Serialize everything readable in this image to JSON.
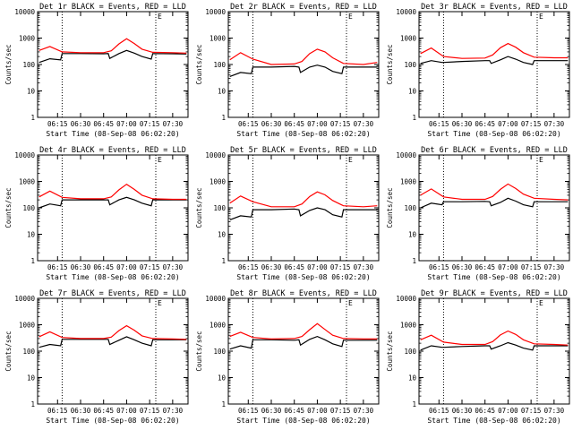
{
  "figure": {
    "xlabel": "Start Time (08-Sep-08 06:02:20)",
    "ylabel": "Counts/sec",
    "x_ticks": [
      "06:15",
      "06:30",
      "06:45",
      "07:00",
      "07:15",
      "07:30"
    ],
    "y_ticks": [
      "1",
      "10",
      "100",
      "1000",
      "10000"
    ],
    "corner_mark": "E",
    "colors": {
      "events": "#000000",
      "lld": "#ff0000",
      "axes": "#000000"
    }
  },
  "chart_data": [
    {
      "type": "line",
      "title": "Det 1r BLACK = Events, RED = LLD",
      "xlabel": "Start Time (08-Sep-08 06:02:20)",
      "ylabel": "Counts/sec",
      "ylim": [
        1,
        10000
      ],
      "yscale": "log",
      "xlim": [
        "06:02",
        "07:40"
      ],
      "vlines": [
        "06:18",
        "07:19"
      ],
      "series": [
        {
          "name": "Events",
          "color": "#000000",
          "x": [
            "06:03",
            "06:10",
            "06:17",
            "06:18",
            "06:30",
            "06:45",
            "06:48",
            "06:49",
            "06:55",
            "07:00",
            "07:05",
            "07:10",
            "07:16",
            "07:17",
            "07:30",
            "07:39"
          ],
          "y": [
            120,
            165,
            150,
            260,
            260,
            255,
            260,
            170,
            260,
            340,
            270,
            200,
            160,
            260,
            255,
            250
          ]
        },
        {
          "name": "LLD",
          "color": "#ff0000",
          "x": [
            "06:03",
            "06:10",
            "06:18",
            "06:30",
            "06:45",
            "06:50",
            "06:55",
            "07:00",
            "07:05",
            "07:10",
            "07:17",
            "07:30",
            "07:39"
          ],
          "y": [
            340,
            480,
            300,
            280,
            280,
            330,
            600,
            950,
            620,
            380,
            290,
            280,
            270
          ]
        }
      ]
    },
    {
      "type": "line",
      "title": "Det 2r BLACK = Events, RED = LLD",
      "xlabel": "Start Time (08-Sep-08 06:02:20)",
      "ylabel": "Counts/sec",
      "ylim": [
        1,
        10000
      ],
      "yscale": "log",
      "xlim": [
        "06:02",
        "07:40"
      ],
      "vlines": [
        "06:18",
        "07:19"
      ],
      "series": [
        {
          "name": "Events",
          "color": "#000000",
          "x": [
            "06:03",
            "06:10",
            "06:17",
            "06:18",
            "06:30",
            "06:45",
            "06:48",
            "06:49",
            "06:55",
            "07:00",
            "07:05",
            "07:10",
            "07:16",
            "07:17",
            "07:30",
            "07:39"
          ],
          "y": [
            35,
            50,
            45,
            80,
            80,
            85,
            80,
            50,
            80,
            95,
            80,
            55,
            45,
            80,
            80,
            80
          ]
        },
        {
          "name": "LLD",
          "color": "#ff0000",
          "x": [
            "06:03",
            "06:10",
            "06:18",
            "06:30",
            "06:45",
            "06:50",
            "06:55",
            "07:00",
            "07:05",
            "07:10",
            "07:17",
            "07:30",
            "07:39"
          ],
          "y": [
            150,
            280,
            160,
            100,
            105,
            130,
            260,
            380,
            300,
            180,
            110,
            100,
            120
          ]
        }
      ]
    },
    {
      "type": "line",
      "title": "Det 3r BLACK = Events, RED = LLD",
      "xlabel": "Start Time (08-Sep-08 06:02:20)",
      "ylabel": "Counts/sec",
      "ylim": [
        1,
        10000
      ],
      "yscale": "log",
      "xlim": [
        "06:02",
        "07:40"
      ],
      "vlines": [
        "06:18",
        "07:19"
      ],
      "series": [
        {
          "name": "Events",
          "color": "#000000",
          "x": [
            "06:03",
            "06:10",
            "06:17",
            "06:18",
            "06:30",
            "06:45",
            "06:48",
            "06:49",
            "06:55",
            "07:00",
            "07:05",
            "07:10",
            "07:16",
            "07:17",
            "07:30",
            "07:39"
          ],
          "y": [
            110,
            140,
            120,
            120,
            130,
            140,
            140,
            110,
            150,
            200,
            160,
            120,
            100,
            140,
            140,
            140
          ]
        },
        {
          "name": "LLD",
          "color": "#ff0000",
          "x": [
            "06:03",
            "06:10",
            "06:18",
            "06:30",
            "06:45",
            "06:50",
            "06:55",
            "07:00",
            "07:05",
            "07:10",
            "07:17",
            "07:30",
            "07:39"
          ],
          "y": [
            260,
            420,
            200,
            170,
            175,
            230,
            430,
            620,
            450,
            280,
            190,
            180,
            180
          ]
        }
      ]
    },
    {
      "type": "line",
      "title": "Det 4r BLACK = Events, RED = LLD",
      "xlabel": "Start Time (08-Sep-08 06:02:20)",
      "ylabel": "Counts/sec",
      "ylim": [
        1,
        10000
      ],
      "yscale": "log",
      "xlim": [
        "06:02",
        "07:40"
      ],
      "vlines": [
        "06:18",
        "07:19"
      ],
      "series": [
        {
          "name": "Events",
          "color": "#000000",
          "x": [
            "06:03",
            "06:10",
            "06:17",
            "06:18",
            "06:30",
            "06:45",
            "06:48",
            "06:49",
            "06:55",
            "07:00",
            "07:05",
            "07:10",
            "07:16",
            "07:17",
            "07:30",
            "07:39"
          ],
          "y": [
            100,
            140,
            120,
            200,
            200,
            200,
            200,
            130,
            200,
            250,
            200,
            150,
            120,
            200,
            200,
            200
          ]
        },
        {
          "name": "LLD",
          "color": "#ff0000",
          "x": [
            "06:03",
            "06:10",
            "06:18",
            "06:30",
            "06:45",
            "06:50",
            "06:55",
            "07:00",
            "07:05",
            "07:10",
            "07:17",
            "07:30",
            "07:39"
          ],
          "y": [
            260,
            430,
            250,
            220,
            220,
            260,
            480,
            780,
            500,
            300,
            220,
            210,
            210
          ]
        }
      ]
    },
    {
      "type": "line",
      "title": "Det 5r BLACK = Events, RED = LLD",
      "xlabel": "Start Time (08-Sep-08 06:02:20)",
      "ylabel": "Counts/sec",
      "ylim": [
        1,
        10000
      ],
      "yscale": "log",
      "xlim": [
        "06:02",
        "07:40"
      ],
      "vlines": [
        "06:18",
        "07:19"
      ],
      "series": [
        {
          "name": "Events",
          "color": "#000000",
          "x": [
            "06:03",
            "06:10",
            "06:17",
            "06:18",
            "06:30",
            "06:45",
            "06:48",
            "06:49",
            "06:55",
            "07:00",
            "07:05",
            "07:10",
            "07:16",
            "07:17",
            "07:30",
            "07:39"
          ],
          "y": [
            35,
            50,
            45,
            85,
            85,
            90,
            85,
            50,
            80,
            100,
            85,
            55,
            45,
            85,
            85,
            85
          ]
        },
        {
          "name": "LLD",
          "color": "#ff0000",
          "x": [
            "06:03",
            "06:10",
            "06:18",
            "06:30",
            "06:45",
            "06:50",
            "06:55",
            "07:00",
            "07:05",
            "07:10",
            "07:17",
            "07:30",
            "07:39"
          ],
          "y": [
            150,
            280,
            170,
            110,
            110,
            140,
            270,
            400,
            310,
            190,
            120,
            110,
            120
          ]
        }
      ]
    },
    {
      "type": "line",
      "title": "Det 6r BLACK = Events, RED = LLD",
      "xlabel": "Start Time (08-Sep-08 06:02:20)",
      "ylabel": "Counts/sec",
      "ylim": [
        1,
        10000
      ],
      "yscale": "log",
      "xlim": [
        "06:02",
        "07:40"
      ],
      "vlines": [
        "06:18",
        "07:19"
      ],
      "series": [
        {
          "name": "Events",
          "color": "#000000",
          "x": [
            "06:03",
            "06:10",
            "06:17",
            "06:18",
            "06:30",
            "06:45",
            "06:48",
            "06:49",
            "06:55",
            "07:00",
            "07:05",
            "07:10",
            "07:16",
            "07:17",
            "07:30",
            "07:39"
          ],
          "y": [
            100,
            150,
            130,
            170,
            170,
            175,
            170,
            120,
            160,
            230,
            180,
            130,
            110,
            170,
            170,
            170
          ]
        },
        {
          "name": "LLD",
          "color": "#ff0000",
          "x": [
            "06:03",
            "06:10",
            "06:18",
            "06:30",
            "06:45",
            "06:50",
            "06:55",
            "07:00",
            "07:05",
            "07:10",
            "07:17",
            "07:30",
            "07:39"
          ],
          "y": [
            300,
            520,
            260,
            210,
            210,
            270,
            500,
            800,
            540,
            330,
            230,
            210,
            200
          ]
        }
      ]
    },
    {
      "type": "line",
      "title": "Det 7r BLACK = Events, RED = LLD",
      "xlabel": "Start Time (08-Sep-08 06:02:20)",
      "ylabel": "Counts/sec",
      "ylim": [
        1,
        10000
      ],
      "yscale": "log",
      "xlim": [
        "06:02",
        "07:40"
      ],
      "vlines": [
        "06:18",
        "07:19"
      ],
      "series": [
        {
          "name": "Events",
          "color": "#000000",
          "x": [
            "06:03",
            "06:10",
            "06:17",
            "06:18",
            "06:30",
            "06:45",
            "06:48",
            "06:49",
            "06:55",
            "07:00",
            "07:05",
            "07:10",
            "07:16",
            "07:17",
            "07:30",
            "07:39"
          ],
          "y": [
            140,
            180,
            160,
            280,
            280,
            280,
            280,
            180,
            260,
            350,
            270,
            200,
            160,
            270,
            270,
            270
          ]
        },
        {
          "name": "LLD",
          "color": "#ff0000",
          "x": [
            "06:03",
            "06:10",
            "06:18",
            "06:30",
            "06:45",
            "06:50",
            "06:55",
            "07:00",
            "07:05",
            "07:10",
            "07:17",
            "07:30",
            "07:39"
          ],
          "y": [
            350,
            540,
            330,
            300,
            300,
            340,
            600,
            920,
            620,
            380,
            300,
            290,
            280
          ]
        }
      ]
    },
    {
      "type": "line",
      "title": "Det 8r BLACK = Events, RED = LLD",
      "xlabel": "Start Time (08-Sep-08 06:02:20)",
      "ylabel": "Counts/sec",
      "ylim": [
        1,
        10000
      ],
      "yscale": "log",
      "xlim": [
        "06:02",
        "07:40"
      ],
      "vlines": [
        "06:18",
        "07:19"
      ],
      "series": [
        {
          "name": "Events",
          "color": "#000000",
          "x": [
            "06:03",
            "06:10",
            "06:17",
            "06:18",
            "06:30",
            "06:45",
            "06:48",
            "06:49",
            "06:55",
            "07:00",
            "07:05",
            "07:10",
            "07:16",
            "07:17",
            "07:30",
            "07:39"
          ],
          "y": [
            120,
            160,
            130,
            270,
            270,
            260,
            270,
            170,
            280,
            360,
            270,
            190,
            150,
            260,
            260,
            260
          ]
        },
        {
          "name": "LLD",
          "color": "#ff0000",
          "x": [
            "06:03",
            "06:10",
            "06:18",
            "06:30",
            "06:45",
            "06:50",
            "06:55",
            "07:00",
            "07:05",
            "07:10",
            "07:17",
            "07:30",
            "07:39"
          ],
          "y": [
            360,
            520,
            330,
            290,
            300,
            360,
            650,
            1100,
            660,
            400,
            300,
            290,
            290
          ]
        }
      ]
    },
    {
      "type": "line",
      "title": "Det 9r BLACK = Events, RED = LLD",
      "xlabel": "Start Time (08-Sep-08 06:02:20)",
      "ylabel": "Counts/sec",
      "ylim": [
        1,
        10000
      ],
      "yscale": "log",
      "xlim": [
        "06:02",
        "07:40"
      ],
      "vlines": [
        "06:18",
        "07:19"
      ],
      "series": [
        {
          "name": "Events",
          "color": "#000000",
          "x": [
            "06:03",
            "06:10",
            "06:17",
            "06:18",
            "06:30",
            "06:45",
            "06:48",
            "06:49",
            "06:55",
            "07:00",
            "07:05",
            "07:10",
            "07:16",
            "07:17",
            "07:30",
            "07:39"
          ],
          "y": [
            110,
            160,
            140,
            140,
            150,
            160,
            160,
            120,
            160,
            210,
            170,
            130,
            110,
            160,
            160,
            160
          ]
        },
        {
          "name": "LLD",
          "color": "#ff0000",
          "x": [
            "06:03",
            "06:10",
            "06:18",
            "06:30",
            "06:45",
            "06:50",
            "06:55",
            "07:00",
            "07:05",
            "07:10",
            "07:17",
            "07:30",
            "07:39"
          ],
          "y": [
            270,
            400,
            220,
            180,
            180,
            230,
            410,
            580,
            430,
            270,
            190,
            180,
            170
          ]
        }
      ]
    }
  ]
}
